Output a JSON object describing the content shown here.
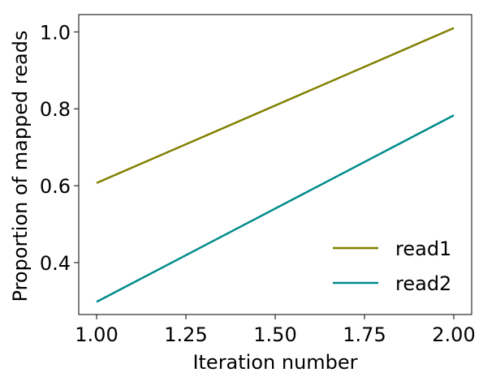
{
  "chart_data": {
    "type": "line",
    "title": "",
    "xlabel": "Iteration number",
    "ylabel": "Proportion of mapped reads",
    "xlim": [
      0.95,
      2.05
    ],
    "ylim": [
      0.265,
      1.045
    ],
    "xticks": [
      1.0,
      1.25,
      1.5,
      1.75,
      2.0
    ],
    "xtick_labels": [
      "1.00",
      "1.25",
      "1.50",
      "1.75",
      "2.00"
    ],
    "yticks": [
      0.4,
      0.6,
      0.8,
      1.0
    ],
    "ytick_labels": [
      "0.4",
      "0.6",
      "0.8",
      "1.0"
    ],
    "grid": false,
    "legend": {
      "position": "lower-right",
      "frame": false
    },
    "series": [
      {
        "name": "read1",
        "color": "#808000",
        "x": [
          1.0,
          2.0
        ],
        "y": [
          0.607,
          1.01
        ]
      },
      {
        "name": "read2",
        "color": "#008b8b",
        "x": [
          1.0,
          2.0
        ],
        "y": [
          0.298,
          0.783
        ]
      }
    ]
  }
}
